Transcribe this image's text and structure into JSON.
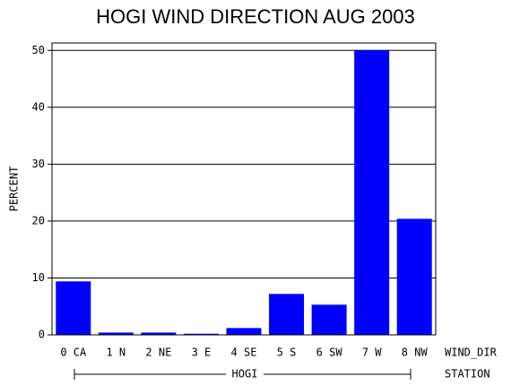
{
  "chart_data": {
    "type": "bar",
    "title": "HOGI WIND DIRECTION AUG 2003",
    "ylabel": "PERCENT",
    "xlabel": "WIND_DIR",
    "group_label": "HOGI",
    "group_axis_label": "STATION",
    "categories": [
      "0 CA",
      "1 N",
      "2 NE",
      "3 E",
      "4 SE",
      "5 S",
      "6 SW",
      "7 W",
      "8 NW"
    ],
    "values": [
      9.4,
      0.4,
      0.4,
      0.2,
      1.2,
      7.2,
      5.3,
      50.0,
      20.4
    ],
    "color": "#0000ff",
    "ylim": [
      0,
      51.3
    ],
    "yticks": [
      0,
      10,
      20,
      30,
      40,
      50
    ],
    "grid": true
  }
}
